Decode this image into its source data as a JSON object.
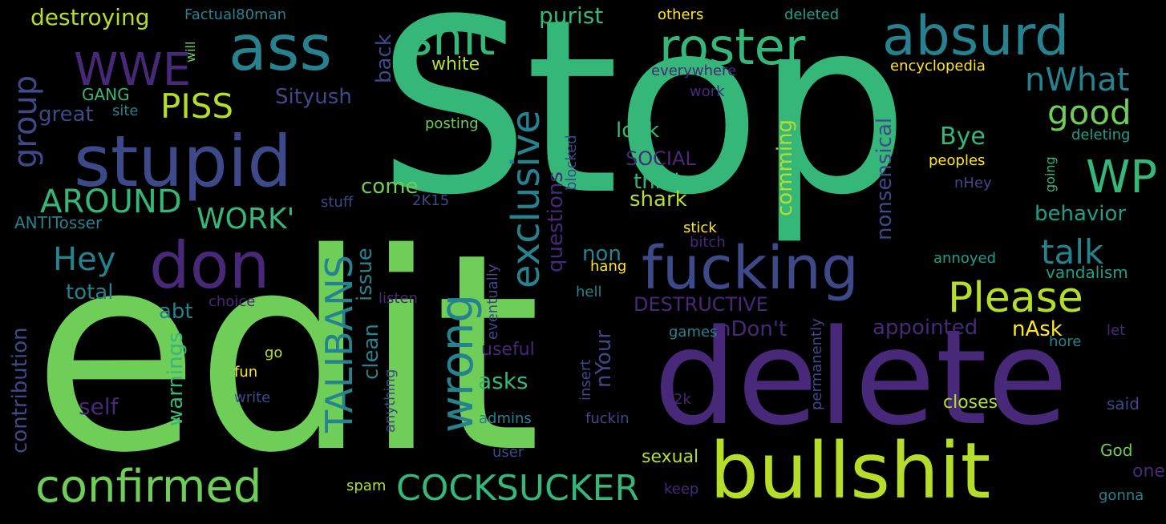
{
  "palette": {
    "background": "#000000",
    "purple": "#482878",
    "indigo": "#3e4989",
    "blue": "#31688e",
    "teal": "#26828e",
    "green": "#1f9e89",
    "mint": "#35b779",
    "lime": "#6ece58",
    "yellowgreen": "#b5de2b",
    "yellow": "#fde725"
  },
  "words": {
    "stop": "Stop",
    "edit": "edit",
    "delete": "delete",
    "bullshit": "bullshit",
    "stupid": "stupid",
    "fucking": "fucking",
    "don": "don",
    "ass": "ass",
    "absurd": "absurd",
    "roster": "roster",
    "shit": "shit",
    "WWE": "WWE",
    "WP": "WP",
    "confirmed": "confirmed",
    "COCKSUCKER": "COCKSUCKER",
    "Please": "Please",
    "wrong": "wrong",
    "exclusive": "exclusive",
    "TALIBANS": "TALIBANS",
    "AROUND": "AROUND",
    "WORK": "WORK'",
    "PISS": "PISS",
    "Hey": "Hey",
    "talk": "talk",
    "good": "good",
    "nWhat": "nWhat",
    "group": "group",
    "destroying": "destroying",
    "Factual80man": "Factual80man",
    "purist": "purist",
    "others": "others",
    "deleted": "deleted",
    "will": "will",
    "back": "back",
    "white": "white",
    "GANG": "GANG",
    "great": "great",
    "site": "site",
    "Sityush": "Sityush",
    "everywhere": "everywhere",
    "encyclopedia": "encyclopedia",
    "work": "work",
    "posting": "posting",
    "look": "look",
    "comming": "comming",
    "Bye": "Bye",
    "deleting": "deleting",
    "SOCIAL": "SOCIAL",
    "peoples": "peoples",
    "going": "going",
    "blocked": "blocked",
    "think": "think",
    "come": "come",
    "nHey": "nHey",
    "stuff": "stuff",
    "2K15": "2K15",
    "shark": "shark",
    "ANTITosser": "ANTITosser",
    "behavior": "behavior",
    "nonsensical": "nonsensical",
    "stick": "stick",
    "bitch": "bitch",
    "issue": "issue",
    "questions": "questions",
    "non": "non",
    "hang": "hang",
    "annoyed": "annoyed",
    "vandalism": "vandalism",
    "total": "total",
    "listen": "listen",
    "choice": "choice",
    "hell": "hell",
    "DESTRUCTIVE": "DESTRUCTIVE",
    "abt": "abt",
    "eventually": "eventually",
    "appointed": "appointed",
    "nAsk": "nAsk",
    "contribution": "contribution",
    "nDont": "nDon't",
    "let": "let",
    "hore": "hore",
    "games": "games",
    "warnings": "warnings",
    "clean": "clean",
    "useful": "useful",
    "go": "go",
    "fun": "fun",
    "nYour": "nYour",
    "permanently": "permanently",
    "asks": "asks",
    "write": "write",
    "self": "self",
    "anything": "anything",
    "insert": "insert",
    "2k": "2k",
    "closes": "closes",
    "said": "said",
    "admins": "admins",
    "fuckin": "fuckin",
    "user": "user",
    "sexual": "sexual",
    "God": "God",
    "spam": "spam",
    "keep": "keep",
    "gonna": "gonna",
    "one": "one"
  }
}
